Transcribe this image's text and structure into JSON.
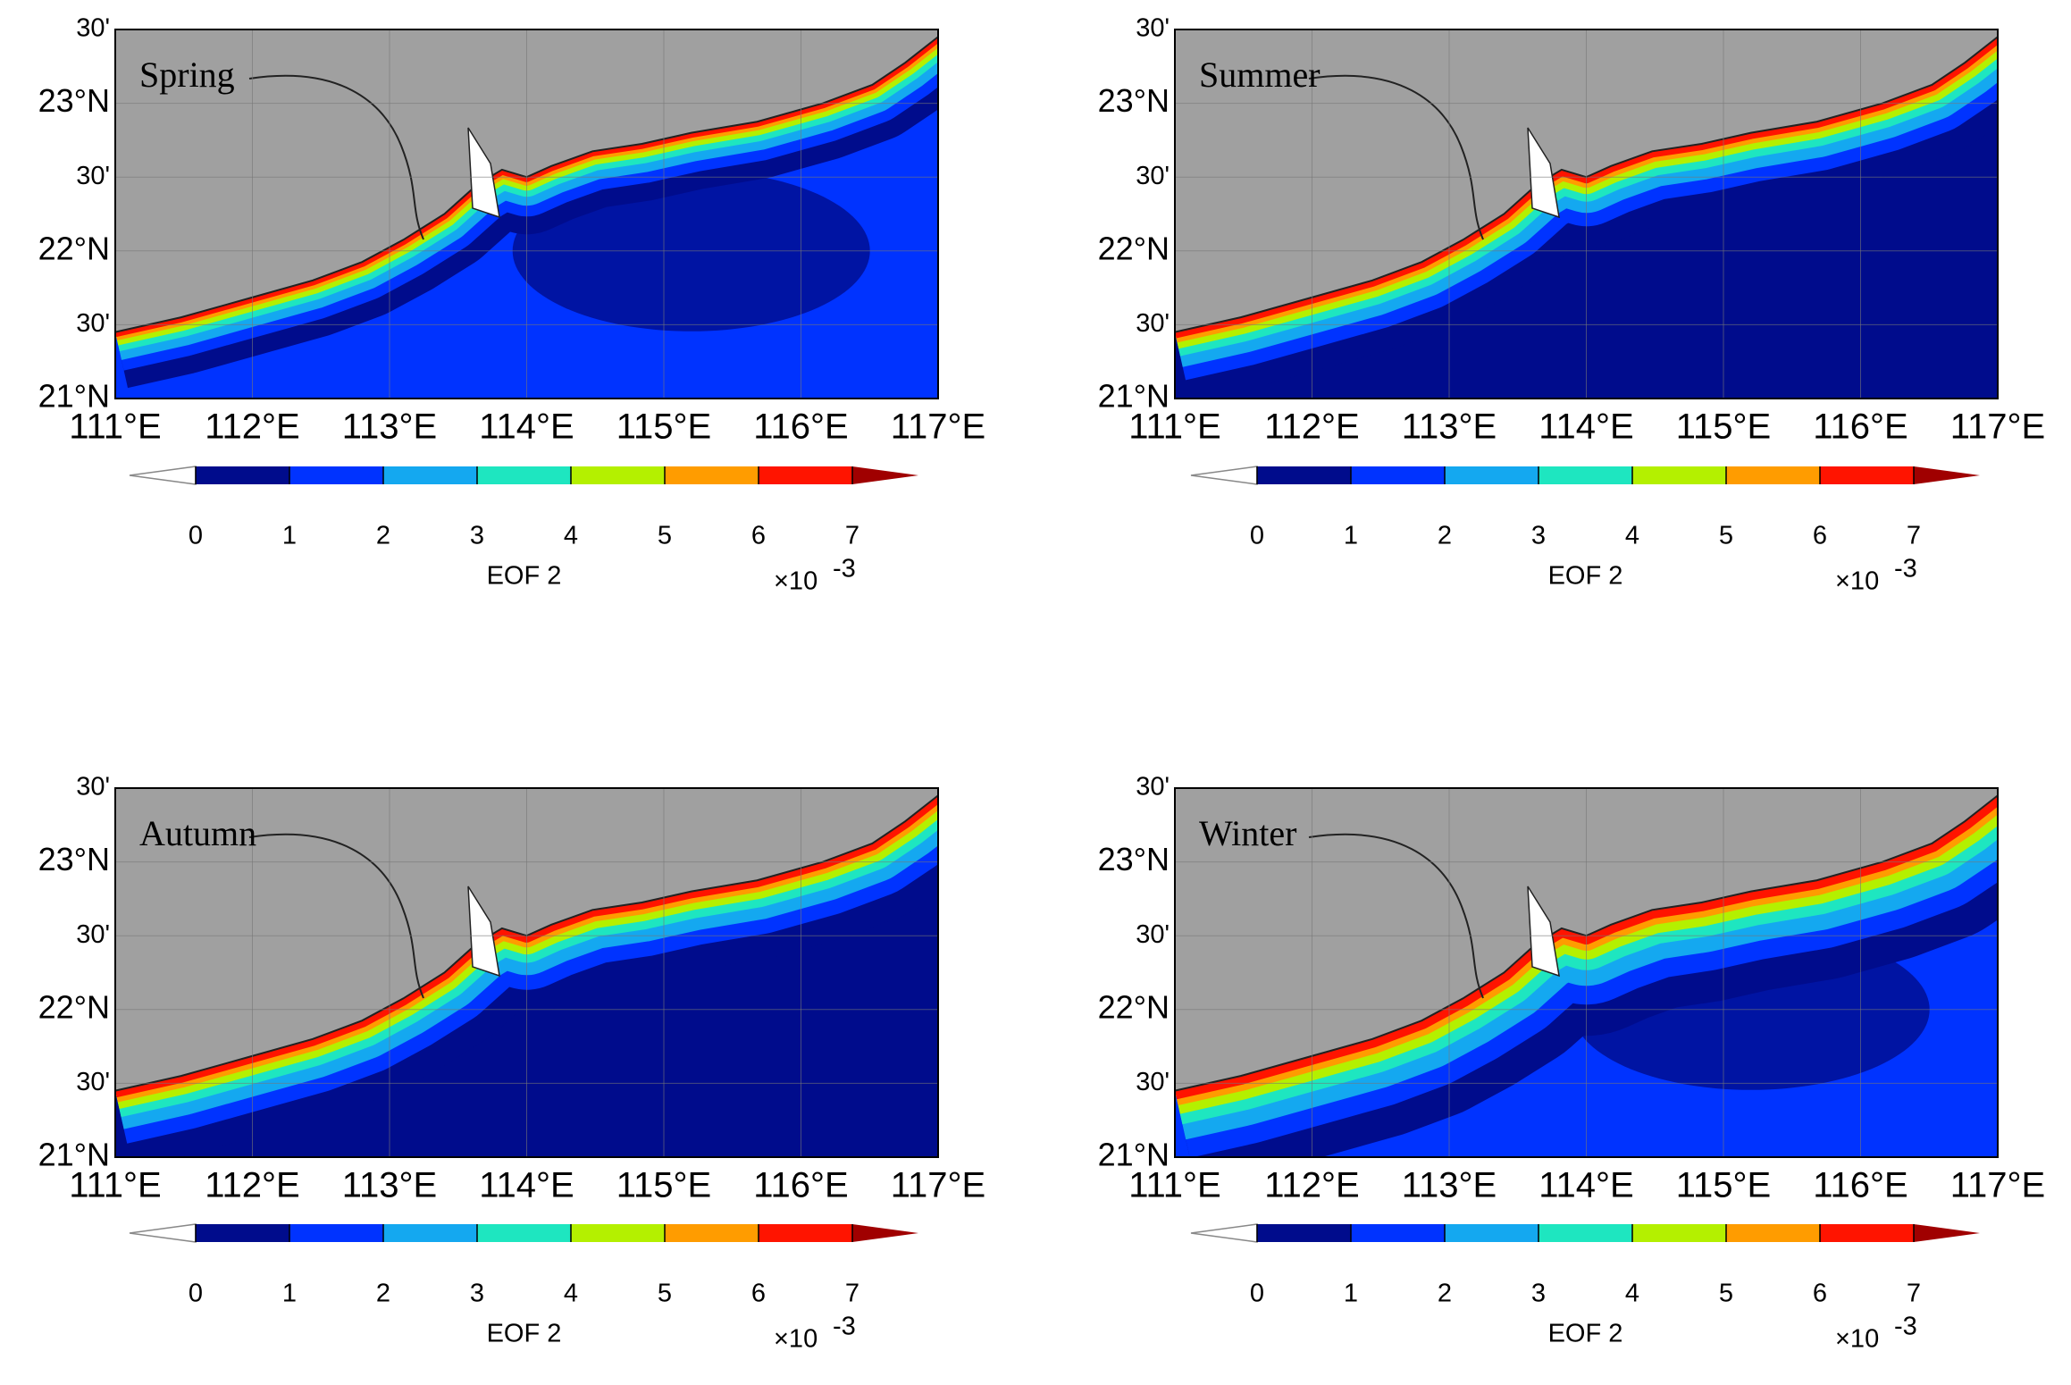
{
  "panels": [
    {
      "title": "Spring"
    },
    {
      "title": "Summer"
    },
    {
      "title": "Autumn"
    },
    {
      "title": "Winter"
    }
  ],
  "lon_ticks": [
    "111°E",
    "112°E",
    "113°E",
    "114°E",
    "115°E",
    "116°E",
    "117°E"
  ],
  "lat_ticks": [
    "30'",
    "23°N",
    "30'",
    "22°N",
    "30'",
    "21°N"
  ],
  "colorbar": {
    "ticks": [
      0,
      1,
      2,
      3,
      4,
      5,
      6,
      7
    ],
    "label": "EOF 2",
    "exponent_base": "×10",
    "exponent_power": "-3",
    "colors": [
      "#ffffff",
      "#000c8c",
      "#0033ff",
      "#14a8f0",
      "#1ee6c0",
      "#b4f000",
      "#ff9c00",
      "#ff1400",
      "#a00000"
    ]
  }
}
